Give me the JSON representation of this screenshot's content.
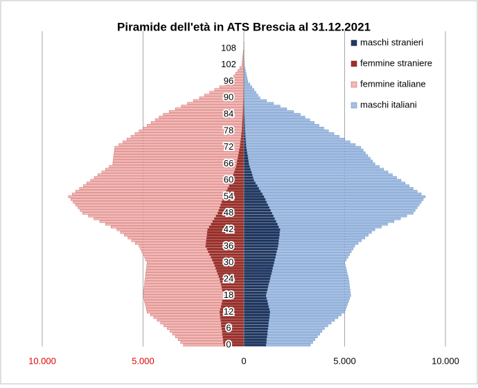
{
  "chart_data": {
    "type": "pyramid",
    "stacked": true,
    "title": "Piramide dell'età in ATS Brescia al 31.12.2021",
    "categories": [
      "0",
      null,
      null,
      null,
      null,
      null,
      "6",
      null,
      null,
      null,
      null,
      null,
      "12",
      null,
      null,
      null,
      null,
      null,
      "18",
      null,
      null,
      null,
      null,
      null,
      "24",
      null,
      null,
      null,
      null,
      null,
      "30",
      null,
      null,
      null,
      null,
      null,
      "36",
      null,
      null,
      null,
      null,
      null,
      "42",
      null,
      null,
      null,
      null,
      null,
      "48",
      null,
      null,
      null,
      null,
      null,
      "54",
      null,
      null,
      null,
      null,
      null,
      "60",
      null,
      null,
      null,
      null,
      null,
      "66",
      null,
      null,
      null,
      null,
      null,
      "72",
      null,
      null,
      null,
      null,
      null,
      "78",
      null,
      null,
      null,
      null,
      null,
      "84",
      null,
      null,
      null,
      null,
      null,
      "90",
      null,
      null,
      null,
      null,
      null,
      "96",
      null,
      null,
      null,
      null,
      null,
      "102",
      null,
      null,
      null,
      null,
      null,
      "108",
      null,
      null
    ],
    "series": [
      {
        "name": "maschi stranieri",
        "color": "#1f3864",
        "edge": "#142647",
        "values": [
          1100,
          1120,
          1130,
          1150,
          1170,
          1180,
          1200,
          1220,
          1230,
          1250,
          1270,
          1280,
          1300,
          1270,
          1230,
          1200,
          1170,
          1130,
          1100,
          1130,
          1170,
          1200,
          1230,
          1270,
          1300,
          1330,
          1370,
          1400,
          1430,
          1470,
          1500,
          1530,
          1570,
          1600,
          1630,
          1670,
          1700,
          1720,
          1730,
          1750,
          1770,
          1780,
          1800,
          1730,
          1670,
          1600,
          1530,
          1470,
          1400,
          1330,
          1270,
          1200,
          1130,
          1070,
          1000,
          920,
          830,
          750,
          670,
          580,
          500,
          460,
          420,
          380,
          330,
          290,
          250,
          230,
          210,
          190,
          160,
          140,
          120,
          110,
          100,
          90,
          80,
          70,
          60,
          55,
          50,
          45,
          40,
          35,
          30,
          27,
          23,
          20,
          17,
          13,
          10,
          9,
          8,
          6,
          5,
          4,
          3,
          3,
          2,
          2,
          2,
          1,
          1,
          1,
          1,
          1,
          0,
          0,
          0,
          0,
          0
        ]
      },
      {
        "name": "femmine straniere",
        "color": "#9e2f2a",
        "edge": "#7a1f1b",
        "values": [
          -1000,
          -1020,
          -1030,
          -1050,
          -1070,
          -1080,
          -1100,
          -1120,
          -1130,
          -1150,
          -1170,
          -1180,
          -1200,
          -1170,
          -1130,
          -1100,
          -1070,
          -1030,
          -1000,
          -1030,
          -1070,
          -1100,
          -1130,
          -1170,
          -1200,
          -1250,
          -1300,
          -1350,
          -1400,
          -1450,
          -1500,
          -1570,
          -1630,
          -1700,
          -1770,
          -1830,
          -1900,
          -1880,
          -1870,
          -1850,
          -1830,
          -1820,
          -1800,
          -1720,
          -1630,
          -1550,
          -1470,
          -1380,
          -1300,
          -1250,
          -1200,
          -1150,
          -1100,
          -1050,
          -1000,
          -930,
          -870,
          -800,
          -730,
          -670,
          -600,
          -560,
          -520,
          -480,
          -430,
          -390,
          -350,
          -330,
          -300,
          -280,
          -250,
          -230,
          -200,
          -180,
          -170,
          -150,
          -130,
          -120,
          -100,
          -90,
          -80,
          -75,
          -65,
          -60,
          -50,
          -45,
          -40,
          -35,
          -30,
          -25,
          -20,
          -18,
          -15,
          -12,
          -10,
          -8,
          -5,
          -4,
          -3,
          -3,
          -2,
          -2,
          -1,
          -1,
          -1,
          -1,
          0,
          0,
          0,
          0,
          0
        ]
      },
      {
        "name": "femmine italiane",
        "color": "#f4b9b7",
        "edge": "#c0504d",
        "values": [
          -2000,
          -2120,
          -2230,
          -2350,
          -2470,
          -2580,
          -2700,
          -2850,
          -3000,
          -3150,
          -3300,
          -3450,
          -3600,
          -3670,
          -3730,
          -3800,
          -3870,
          -3930,
          -4000,
          -3950,
          -3900,
          -3850,
          -3800,
          -3750,
          -3700,
          -3630,
          -3570,
          -3500,
          -3430,
          -3370,
          -3300,
          -3300,
          -3300,
          -3300,
          -3300,
          -3300,
          -3300,
          -3500,
          -3700,
          -3900,
          -4100,
          -4300,
          -4500,
          -4870,
          -5230,
          -5600,
          -5970,
          -6330,
          -6700,
          -6870,
          -7030,
          -7200,
          -7370,
          -7530,
          -7700,
          -7580,
          -7470,
          -7350,
          -7230,
          -7120,
          -7000,
          -6860,
          -6720,
          -6570,
          -6430,
          -6290,
          -6150,
          -6160,
          -6170,
          -6180,
          -6180,
          -6190,
          -6200,
          -6020,
          -5830,
          -5650,
          -5470,
          -5280,
          -5100,
          -4910,
          -4720,
          -4530,
          -4330,
          -4140,
          -3950,
          -3660,
          -3360,
          -3070,
          -2770,
          -2480,
          -2180,
          -1930,
          -1680,
          -1440,
          -1190,
          -940,
          -695,
          -600,
          -500,
          -400,
          -300,
          -200,
          -99,
          -85,
          -70,
          -55,
          -40,
          -25,
          -10,
          -6,
          -3
        ]
      },
      {
        "name": "maschi italiani",
        "color": "#a6bfe3",
        "edge": "#4f81bd",
        "values": [
          2200,
          2300,
          2400,
          2500,
          2600,
          2700,
          2800,
          2950,
          3100,
          3250,
          3400,
          3550,
          3700,
          3780,
          3870,
          3950,
          4030,
          4120,
          4200,
          4150,
          4100,
          4050,
          4000,
          3950,
          3900,
          3840,
          3760,
          3700,
          3640,
          3560,
          3500,
          3550,
          3600,
          3650,
          3700,
          3750,
          3800,
          3950,
          4100,
          4250,
          4400,
          4550,
          4700,
          5090,
          5460,
          5850,
          6240,
          6610,
          7000,
          7170,
          7330,
          7500,
          7670,
          7830,
          8000,
          7880,
          7770,
          7650,
          7530,
          7420,
          7300,
          7120,
          6950,
          6770,
          6600,
          6430,
          6250,
          6150,
          6060,
          5960,
          5870,
          5780,
          5680,
          5420,
          5170,
          4910,
          4650,
          4400,
          4140,
          3915,
          3680,
          3455,
          3230,
          2995,
          2770,
          2443,
          2107,
          1780,
          1453,
          1117,
          790,
          691,
          592,
          494,
          395,
          296,
          197,
          167,
          138,
          108,
          78,
          49,
          19,
          17,
          14,
          11,
          10,
          8,
          5,
          3,
          2
        ]
      }
    ],
    "xlim": [
      -10000,
      10000
    ],
    "xticks": [
      {
        "value": -10000,
        "label": "10.000"
      },
      {
        "value": -5000,
        "label": "5.000"
      },
      0,
      {
        "value": 5000,
        "label": "5.000"
      },
      {
        "value": 10000,
        "label": "10.000"
      }
    ],
    "xtick_colors": [
      "#e00000",
      "#e00000",
      "#000000",
      "#000000",
      "#000000"
    ],
    "grid": true,
    "legend": "top-right"
  }
}
